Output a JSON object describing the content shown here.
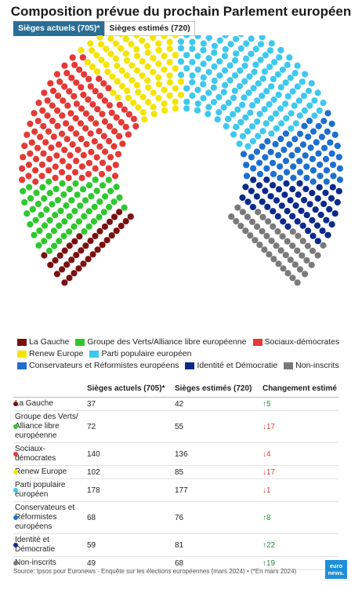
{
  "header": {
    "title": "Composition prévue du prochain Parlement européen"
  },
  "toggles": [
    {
      "label": "Sièges actuels (705)*",
      "active": true
    },
    {
      "label": "Sièges estimés (720)",
      "active": false
    }
  ],
  "chart_data": {
    "type": "parliament",
    "title": "Composition prévue du prochain Parlement européen",
    "total_seats": 705,
    "series": [
      {
        "name": "La Gauche",
        "values": [
          37
        ],
        "color": "#7a1010"
      },
      {
        "name": "Groupe des Verts/Alliance libre européenne",
        "values": [
          72
        ],
        "color": "#2ec82e"
      },
      {
        "name": "Sociaux-démocrates",
        "values": [
          140
        ],
        "color": "#e53935"
      },
      {
        "name": "Renew Europe",
        "values": [
          102
        ],
        "color": "#f5e400"
      },
      {
        "name": "Parti populaire européen",
        "values": [
          178
        ],
        "color": "#3ec8ee"
      },
      {
        "name": "Conservateurs et Réformistes européens",
        "values": [
          68
        ],
        "color": "#1c6fd0"
      },
      {
        "name": "Identité et Démocratie",
        "values": [
          59
        ],
        "color": "#0b2a8c"
      },
      {
        "name": "Non-inscrits",
        "values": [
          49
        ],
        "color": "#7a7a7a"
      }
    ]
  },
  "table": {
    "headers": [
      "",
      "Sièges actuels (705)*",
      "Sièges estimés (720)",
      "Changement estimé"
    ],
    "rows": [
      {
        "party": "La Gauche",
        "color": "#7a1010",
        "current": "37",
        "estimated": "42",
        "arrow": "↑",
        "change": "5",
        "dir": "up"
      },
      {
        "party": "Groupe des Verts/ Alliance libre européenne",
        "color": "#2ec82e",
        "current": "72",
        "estimated": "55",
        "arrow": "↓",
        "change": "17",
        "dir": "down"
      },
      {
        "party": "Sociaux-démocrates",
        "color": "#e53935",
        "current": "140",
        "estimated": "136",
        "arrow": "↓",
        "change": "4",
        "dir": "down"
      },
      {
        "party": "Renew Europe",
        "color": "#f5e400",
        "current": "102",
        "estimated": "85",
        "arrow": "↓",
        "change": "17",
        "dir": "down"
      },
      {
        "party": "Parti populaire européen",
        "color": "#3ec8ee",
        "current": "178",
        "estimated": "177",
        "arrow": "↓",
        "change": "1",
        "dir": "down"
      },
      {
        "party": "Conservateurs et Réformistes européens",
        "color": "#1c6fd0",
        "current": "68",
        "estimated": "76",
        "arrow": "↑",
        "change": "8",
        "dir": "up"
      },
      {
        "party": "Identité et Démocratie",
        "color": "#0b2a8c",
        "current": "59",
        "estimated": "81",
        "arrow": "↑",
        "change": "22",
        "dir": "up"
      },
      {
        "party": "Non-inscrits",
        "color": "#7a7a7a",
        "current": "49",
        "estimated": "68",
        "arrow": "↑",
        "change": "19",
        "dir": "up"
      }
    ]
  },
  "footer": {
    "source": "Source: Ipsos pour Euronews - Enquête sur les élections européennes (mars 2024) • (*En mars 2024)",
    "logo": "euro news."
  }
}
